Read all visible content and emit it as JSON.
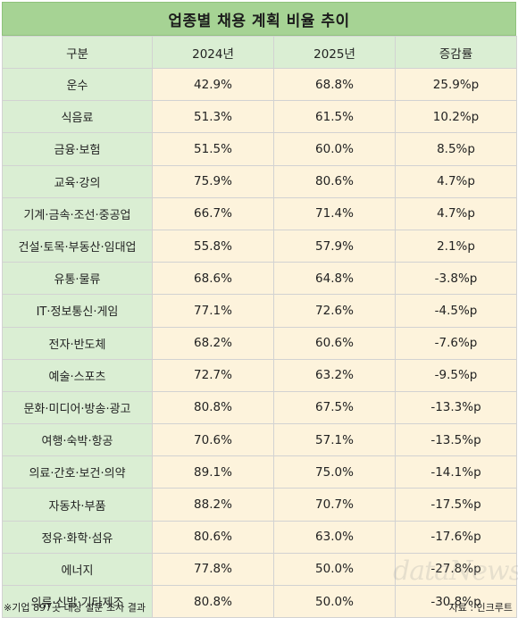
{
  "title": "업종별 채용 계획 비율 추이",
  "header": [
    "구분",
    "2024년",
    "2025년",
    "증감률"
  ],
  "rows": [
    {
      "category": "운수",
      "y2024": "42.9%",
      "y2025": "68.8%",
      "change": "25.9%p"
    },
    {
      "category": "식음료",
      "y2024": "51.3%",
      "y2025": "61.5%",
      "change": "10.2%p"
    },
    {
      "category": "금융·보험",
      "y2024": "51.5%",
      "y2025": "60.0%",
      "change": "8.5%p"
    },
    {
      "category": "교육·강의",
      "y2024": "75.9%",
      "y2025": "80.6%",
      "change": "4.7%p"
    },
    {
      "category": "기계·금속·조선·중공업",
      "y2024": "66.7%",
      "y2025": "71.4%",
      "change": "4.7%p"
    },
    {
      "category": "건설·토목·부동산·임대업",
      "y2024": "55.8%",
      "y2025": "57.9%",
      "change": "2.1%p"
    },
    {
      "category": "유통·물류",
      "y2024": "68.6%",
      "y2025": "64.8%",
      "change": "-3.8%p"
    },
    {
      "category": "IT·정보통신·게임",
      "y2024": "77.1%",
      "y2025": "72.6%",
      "change": "-4.5%p"
    },
    {
      "category": "전자·반도체",
      "y2024": "68.2%",
      "y2025": "60.6%",
      "change": "-7.6%p"
    },
    {
      "category": "예술·스포츠",
      "y2024": "72.7%",
      "y2025": "63.2%",
      "change": "-9.5%p"
    },
    {
      "category": "문화·미디어·방송·광고",
      "y2024": "80.8%",
      "y2025": "67.5%",
      "change": "-13.3%p"
    },
    {
      "category": "여행·숙박·항공",
      "y2024": "70.6%",
      "y2025": "57.1%",
      "change": "-13.5%p"
    },
    {
      "category": "의료·간호·보건·의약",
      "y2024": "89.1%",
      "y2025": "75.0%",
      "change": "-14.1%p"
    },
    {
      "category": "자동차·부품",
      "y2024": "88.2%",
      "y2025": "70.7%",
      "change": "-17.5%p"
    },
    {
      "category": "정유·화학·섬유",
      "y2024": "80.6%",
      "y2025": "63.0%",
      "change": "-17.6%p"
    },
    {
      "category": "에너지",
      "y2024": "77.8%",
      "y2025": "50.0%",
      "change": "-27.8%p"
    },
    {
      "category": "의류·신발·기타제조",
      "y2024": "80.8%",
      "y2025": "50.0%",
      "change": "-30.8%p"
    }
  ],
  "footnote": "※기업 897곳 대상 설문 조사 결과",
  "source": "자료 : 인크루트",
  "watermark": "dataNews",
  "colors": {
    "header_green": "#a6d394",
    "label_green": "#daeed3",
    "value_cream": "#fdf3dc"
  }
}
